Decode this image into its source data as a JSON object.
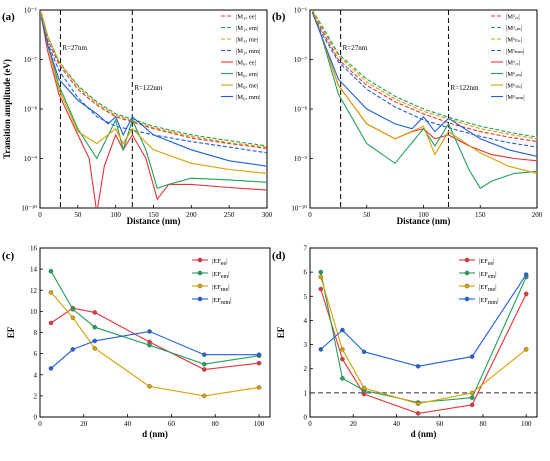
{
  "colors": {
    "ee": "#e8323c",
    "em": "#22a05a",
    "me": "#d8a000",
    "mm": "#2060d8"
  },
  "chart_data": [
    {
      "panel": "(a)",
      "type": "line",
      "xlabel": "Distance (nm)",
      "ylabel": "Transition amplitude (eV)",
      "xlim": [
        0,
        300
      ],
      "ylim": [
        1e-10,
        1e-06
      ],
      "yscale": "log",
      "xticks": [
        0,
        50,
        100,
        150,
        200,
        250,
        300
      ],
      "yticks": [
        {
          "v": 1e-10,
          "l": "10⁻¹⁰"
        },
        {
          "v": 1e-09,
          "l": "10⁻⁹"
        },
        {
          "v": 1e-08,
          "l": "10⁻⁸"
        },
        {
          "v": 1e-07,
          "l": "10⁻⁷"
        },
        {
          "v": 1e-06,
          "l": "10⁻⁶"
        }
      ],
      "vlines": [
        {
          "x": 27,
          "label": "R=27nm"
        },
        {
          "x": 122,
          "label": "R=122nm"
        }
      ],
      "legend_position": "right",
      "series": [
        {
          "name": "|M₁ₓ ee|",
          "key": "ee",
          "dashed": true,
          "x": [
            2,
            10,
            25,
            50,
            75,
            100,
            150,
            200,
            250,
            300
          ],
          "y": [
            8e-07,
            2.5e-07,
            8e-08,
            2.5e-08,
            1.2e-08,
            7e-09,
            4e-09,
            2.6e-09,
            2e-09,
            1.6e-09
          ]
        },
        {
          "name": "|M₁ₓ em|",
          "key": "em",
          "dashed": true,
          "x": [
            2,
            10,
            25,
            50,
            75,
            100,
            150,
            200,
            250,
            300
          ],
          "y": [
            8e-07,
            3e-07,
            9e-08,
            3e-08,
            1.4e-08,
            8e-09,
            4.5e-09,
            3e-09,
            2.3e-09,
            1.8e-09
          ]
        },
        {
          "name": "|M₁ₓ me|",
          "key": "me",
          "dashed": true,
          "x": [
            2,
            10,
            25,
            50,
            75,
            100,
            150,
            200,
            250,
            300
          ],
          "y": [
            9e-07,
            3e-07,
            9e-08,
            2.8e-08,
            1.3e-08,
            7.5e-09,
            4.2e-09,
            2.8e-09,
            2.1e-09,
            1.7e-09
          ]
        },
        {
          "name": "|M₁ₓ mm|",
          "key": "mm",
          "dashed": true,
          "x": [
            2,
            10,
            25,
            50,
            75,
            100,
            150,
            200,
            250,
            300
          ],
          "y": [
            7e-07,
            2.2e-07,
            6e-08,
            1.7e-08,
            7e-09,
            4.5e-09,
            3e-09,
            2.2e-09,
            1.7e-09,
            1.3e-09
          ]
        },
        {
          "name": "|M₆ₓ ee|",
          "key": "ee",
          "dashed": false,
          "x": [
            2,
            10,
            25,
            50,
            65,
            75,
            85,
            100,
            110,
            122,
            140,
            155,
            170,
            200,
            250,
            300
          ],
          "y": [
            7e-07,
            1.5e-07,
            2e-08,
            3e-09,
            1e-09,
            8e-11,
            7e-10,
            3e-09,
            1.5e-09,
            3e-09,
            1e-09,
            1.5e-10,
            3e-10,
            3e-10,
            2.6e-10,
            2.3e-10
          ]
        },
        {
          "name": "|M₆ₓ em|",
          "key": "em",
          "dashed": false,
          "x": [
            2,
            10,
            25,
            50,
            75,
            100,
            110,
            122,
            140,
            155,
            170,
            200,
            250,
            300
          ],
          "y": [
            8e-07,
            2e-07,
            3e-08,
            4e-09,
            1e-09,
            6e-09,
            1.5e-09,
            6e-09,
            1.5e-09,
            2.5e-10,
            3e-10,
            4e-10,
            3.7e-10,
            3.3e-10
          ]
        },
        {
          "name": "|M₆ₓ me|",
          "key": "me",
          "dashed": false,
          "x": [
            2,
            10,
            25,
            50,
            75,
            100,
            110,
            122,
            150,
            200,
            250,
            300
          ],
          "y": [
            9e-07,
            2e-07,
            2.5e-08,
            3.5e-09,
            2e-09,
            4e-09,
            2e-09,
            4e-09,
            1.5e-09,
            8e-10,
            6e-10,
            5e-10
          ]
        },
        {
          "name": "|M₆ₓ mm|",
          "key": "mm",
          "dashed": false,
          "x": [
            2,
            10,
            25,
            50,
            75,
            90,
            100,
            110,
            122,
            150,
            200,
            250,
            300
          ],
          "y": [
            7e-07,
            2e-07,
            4e-08,
            1.5e-08,
            8e-09,
            5e-09,
            7e-09,
            3e-09,
            7e-09,
            3e-09,
            1.5e-09,
            9e-10,
            7e-10
          ]
        }
      ]
    },
    {
      "panel": "(b)",
      "type": "line",
      "xlabel": "Distance (nm)",
      "ylabel": "",
      "xlim": [
        0,
        200
      ],
      "ylim": [
        1e-10,
        1e-06
      ],
      "yscale": "log",
      "xticks": [
        0,
        50,
        100,
        150,
        200
      ],
      "yticks": [
        {
          "v": 1e-10,
          "l": "10⁻¹⁰"
        },
        {
          "v": 1e-09,
          "l": "10⁻⁹"
        },
        {
          "v": 1e-08,
          "l": "10⁻⁸"
        },
        {
          "v": 1e-07,
          "l": "10⁻⁷"
        },
        {
          "v": 1e-06,
          "l": "10⁻⁶"
        }
      ],
      "vlines": [
        {
          "x": 27,
          "label": "R=27nm"
        },
        {
          "x": 122,
          "label": "R=122nm"
        }
      ],
      "legend_position": "right",
      "series": [
        {
          "name": "|M¹ₑₑ|",
          "key": "ee",
          "dashed": true,
          "x": [
            2,
            10,
            25,
            50,
            75,
            100,
            125,
            150,
            175,
            200
          ],
          "y": [
            1e-06,
            4e-07,
            1e-07,
            3e-08,
            1.4e-08,
            8e-09,
            5e-09,
            3.5e-09,
            2.7e-09,
            2.2e-09
          ]
        },
        {
          "name": "|M¹ₑₘ|",
          "key": "em",
          "dashed": true,
          "x": [
            2,
            10,
            25,
            50,
            75,
            100,
            125,
            150,
            175,
            200
          ],
          "y": [
            1e-06,
            5e-07,
            1.3e-07,
            4e-08,
            1.8e-08,
            1e-08,
            6.5e-09,
            4.5e-09,
            3.4e-09,
            2.7e-09
          ]
        },
        {
          "name": "|M¹ₘₑ|",
          "key": "me",
          "dashed": true,
          "x": [
            2,
            10,
            25,
            50,
            75,
            100,
            125,
            150,
            175,
            200
          ],
          "y": [
            1e-06,
            4.5e-07,
            1.2e-07,
            3.5e-08,
            1.6e-08,
            9e-09,
            6e-09,
            4e-09,
            3.1e-09,
            2.5e-09
          ]
        },
        {
          "name": "|M¹ₘₘ|",
          "key": "mm",
          "dashed": true,
          "x": [
            2,
            10,
            25,
            50,
            75,
            100,
            125,
            150,
            175,
            200
          ],
          "y": [
            9e-07,
            3.5e-07,
            9e-08,
            2.5e-08,
            1.1e-08,
            6e-09,
            4e-09,
            2.8e-09,
            2.1e-09,
            1.7e-09
          ]
        },
        {
          "name": "|M⁶ₑₑ|",
          "key": "ee",
          "dashed": false,
          "x": [
            2,
            10,
            25,
            50,
            75,
            90,
            100,
            110,
            122,
            140,
            160,
            180,
            200
          ],
          "y": [
            1e-06,
            3e-07,
            3e-08,
            5e-09,
            2.5e-09,
            3.5e-09,
            4e-09,
            2.5e-09,
            3e-09,
            1.8e-09,
            1.2e-09,
            1e-09,
            9e-10
          ]
        },
        {
          "name": "|M⁶ₑₘ|",
          "key": "em",
          "dashed": false,
          "x": [
            2,
            10,
            25,
            50,
            75,
            100,
            110,
            122,
            140,
            150,
            160,
            180,
            200
          ],
          "y": [
            1e-06,
            3e-07,
            2e-08,
            2e-09,
            8e-10,
            4e-09,
            1.8e-09,
            5e-09,
            6e-10,
            2.5e-10,
            3.5e-10,
            5e-10,
            5.5e-10
          ]
        },
        {
          "name": "|M⁶ₘₑ|",
          "key": "me",
          "dashed": false,
          "x": [
            2,
            10,
            25,
            50,
            75,
            100,
            110,
            122,
            150,
            175,
            200
          ],
          "y": [
            1e-06,
            3e-07,
            3e-08,
            5e-09,
            2.5e-09,
            4.5e-09,
            1.2e-09,
            3.5e-09,
            1.3e-09,
            7e-10,
            5e-10
          ]
        },
        {
          "name": "|M⁶ₘₘ|",
          "key": "mm",
          "dashed": false,
          "x": [
            2,
            10,
            25,
            50,
            75,
            90,
            100,
            110,
            122,
            150,
            175,
            200
          ],
          "y": [
            9e-07,
            3e-07,
            4e-08,
            1e-08,
            5e-09,
            4e-09,
            7e-09,
            3.5e-09,
            6.5e-09,
            2.5e-09,
            1.5e-09,
            1.1e-09
          ]
        }
      ]
    },
    {
      "panel": "(c)",
      "type": "line",
      "xlabel": "d (nm)",
      "ylabel": "EF",
      "xlim": [
        0,
        105
      ],
      "ylim": [
        0,
        16
      ],
      "yscale": "linear",
      "xticks": [
        0,
        20,
        40,
        60,
        80,
        100
      ],
      "yticks": [
        {
          "v": 0,
          "l": "0"
        },
        {
          "v": 2,
          "l": "2"
        },
        {
          "v": 4,
          "l": "4"
        },
        {
          "v": 6,
          "l": "6"
        },
        {
          "v": 8,
          "l": "8"
        },
        {
          "v": 10,
          "l": "10"
        },
        {
          "v": 12,
          "l": "12"
        },
        {
          "v": 14,
          "l": "14"
        },
        {
          "v": 16,
          "l": "16"
        }
      ],
      "legend_position": "top-right",
      "series": [
        {
          "name": "|EF",
          "sub": "ee",
          "key": "ee",
          "x": [
            5,
            15,
            25,
            50,
            75,
            100
          ],
          "y": [
            8.9,
            10.3,
            9.9,
            7.1,
            4.5,
            5.1
          ]
        },
        {
          "name": "|EF",
          "sub": "em",
          "key": "em",
          "x": [
            5,
            15,
            25,
            50,
            75,
            100
          ],
          "y": [
            13.8,
            10.2,
            8.5,
            6.8,
            5.0,
            5.8
          ]
        },
        {
          "name": "|EF",
          "sub": "me",
          "key": "me",
          "x": [
            5,
            15,
            25,
            50,
            75,
            100
          ],
          "y": [
            11.8,
            9.4,
            6.5,
            2.9,
            2.0,
            2.8
          ]
        },
        {
          "name": "|EF",
          "sub": "mm",
          "key": "mm",
          "x": [
            5,
            15,
            25,
            50,
            75,
            100
          ],
          "y": [
            4.6,
            6.4,
            7.2,
            8.1,
            5.9,
            5.9
          ]
        }
      ]
    },
    {
      "panel": "(d)",
      "type": "line",
      "xlabel": "d (nm)",
      "ylabel": "EF",
      "xlim": [
        0,
        105
      ],
      "ylim": [
        0,
        7
      ],
      "yscale": "linear",
      "xticks": [
        0,
        20,
        40,
        60,
        80,
        100
      ],
      "yticks": [
        {
          "v": 0,
          "l": "0"
        },
        {
          "v": 1,
          "l": "1"
        },
        {
          "v": 2,
          "l": "2"
        },
        {
          "v": 3,
          "l": "3"
        },
        {
          "v": 4,
          "l": "4"
        },
        {
          "v": 5,
          "l": "5"
        },
        {
          "v": 6,
          "l": "6"
        },
        {
          "v": 7,
          "l": "7"
        }
      ],
      "hline": 1,
      "legend_position": "top-right",
      "series": [
        {
          "name": "|EF",
          "sub": "ee",
          "key": "ee",
          "x": [
            5,
            15,
            25,
            50,
            75,
            100
          ],
          "y": [
            5.3,
            2.4,
            0.95,
            0.15,
            0.5,
            5.1
          ]
        },
        {
          "name": "|EF",
          "sub": "em",
          "key": "em",
          "x": [
            5,
            15,
            25,
            50,
            75,
            100
          ],
          "y": [
            6.0,
            1.6,
            1.1,
            0.6,
            0.8,
            5.8
          ]
        },
        {
          "name": "|EF",
          "sub": "me",
          "key": "me",
          "x": [
            5,
            15,
            25,
            50,
            75,
            100
          ],
          "y": [
            5.8,
            2.8,
            1.2,
            0.55,
            1.0,
            2.8
          ]
        },
        {
          "name": "|EF",
          "sub": "mm",
          "key": "mm",
          "x": [
            5,
            15,
            25,
            50,
            75,
            100
          ],
          "y": [
            2.8,
            3.6,
            2.7,
            2.1,
            2.5,
            5.9
          ]
        }
      ]
    }
  ]
}
